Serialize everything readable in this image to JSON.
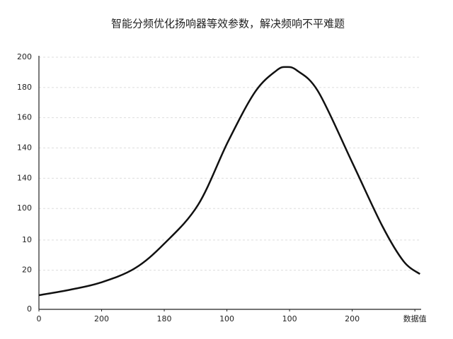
{
  "chart_data": {
    "type": "line",
    "title": "智能分频优化扬响器等效参数，解决频响不平难题",
    "x": [
      0,
      51,
      99,
      153,
      200,
      254,
      302,
      345,
      379,
      395,
      412,
      446,
      500,
      548,
      582,
      608
    ],
    "series": [
      {
        "color": "#111111",
        "values": [
          11.2,
          15.7,
          21.3,
          32.5,
          52.1,
          82.9,
          133.3,
          172.5,
          189.4,
          192.2,
          189.4,
          172.5,
          116.5,
          66.1,
          38.1,
          28.0
        ]
      }
    ],
    "xlim": [
      0,
      610
    ],
    "xticks": [
      0,
      {
        "value": 100,
        "label": "200"
      },
      {
        "value": 200,
        "label": "180"
      },
      {
        "value": 300,
        "label": "100"
      },
      {
        "value": 400,
        "label": "100"
      },
      {
        "value": 500,
        "label": "200"
      },
      {
        "value": 600,
        "label": "数据值"
      }
    ],
    "ylim": [
      0,
      200
    ],
    "yticks": [
      0,
      {
        "value": 31,
        "label": "20"
      },
      {
        "value": 55,
        "label": "10"
      },
      {
        "value": 80,
        "label": "100"
      },
      {
        "value": 104,
        "label": "140"
      },
      {
        "value": 128,
        "label": "140"
      },
      {
        "value": 152,
        "label": "160"
      },
      {
        "value": 176,
        "label": "180"
      },
      200
    ],
    "grid": true
  }
}
